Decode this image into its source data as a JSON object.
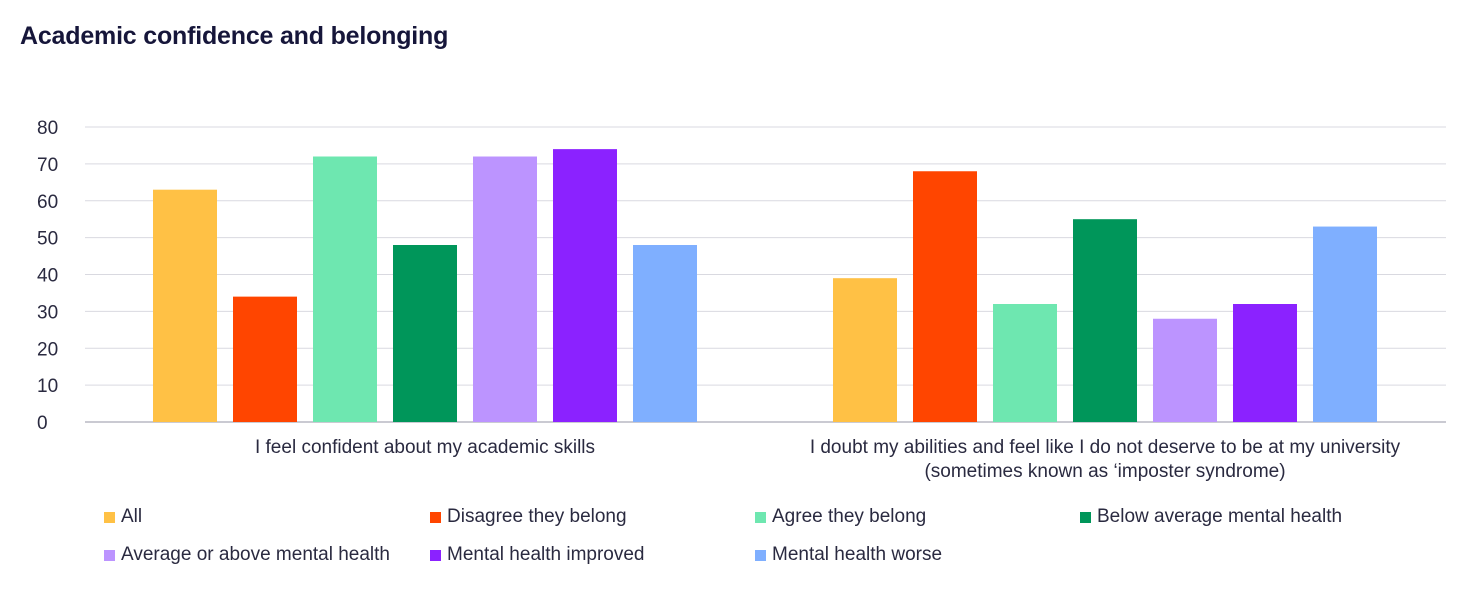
{
  "title": "Academic confidence and belonging",
  "chart_data": {
    "type": "bar",
    "categories": [
      [
        "I feel confident about my academic skills"
      ],
      [
        "I doubt my abilities and feel like I do not deserve to be at my university",
        "(sometimes known as ‘imposter syndrome)"
      ]
    ],
    "ylim": [
      0,
      80
    ],
    "yticks": [
      0,
      10,
      20,
      30,
      40,
      50,
      60,
      70,
      80
    ],
    "grid": true,
    "legend_position": "bottom",
    "series": [
      {
        "name": "All",
        "color": "#FFC145",
        "values": [
          63,
          39
        ]
      },
      {
        "name": "Disagree they belong",
        "color": "#FF4500",
        "values": [
          34,
          68
        ]
      },
      {
        "name": "Agree they belong",
        "color": "#6EE7B0",
        "values": [
          72,
          32
        ]
      },
      {
        "name": "Below average mental health",
        "color": "#00965A",
        "values": [
          48,
          55
        ]
      },
      {
        "name": "Average or above mental health",
        "color": "#BC94FF",
        "values": [
          72,
          28
        ]
      },
      {
        "name": "Mental health improved",
        "color": "#8B22FF",
        "values": [
          74,
          32
        ]
      },
      {
        "name": "Mental health worse",
        "color": "#7FAFFF",
        "values": [
          48,
          53
        ]
      }
    ]
  }
}
